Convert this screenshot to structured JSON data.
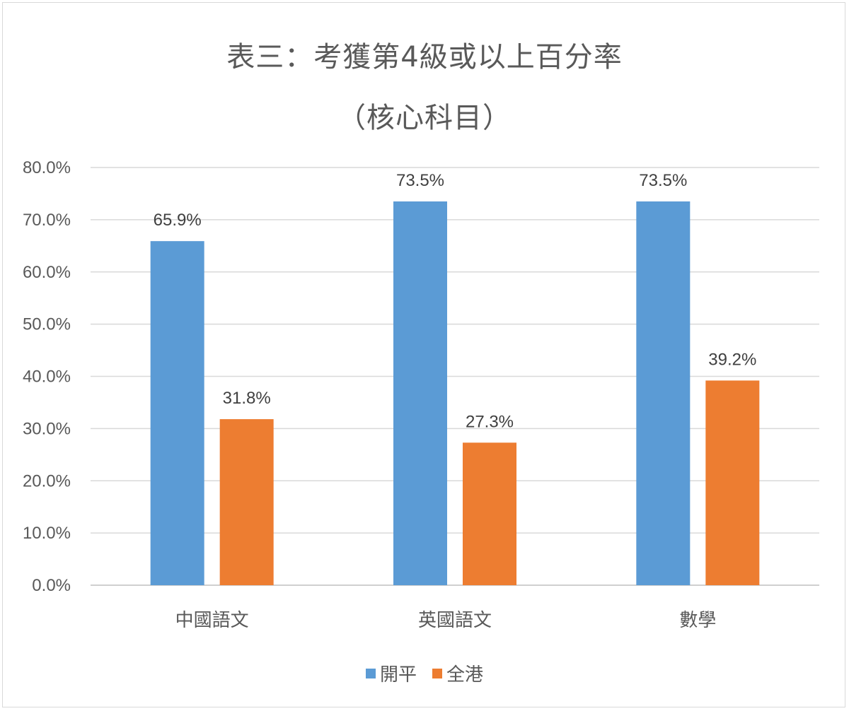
{
  "chart_data": {
    "type": "bar",
    "title": "表三：考獲第4級或以上百分率",
    "subtitle": "（核心科目）",
    "categories": [
      "中國語文",
      "英國語文",
      "數學"
    ],
    "series": [
      {
        "name": "開平",
        "color": "#5b9bd5",
        "values": [
          65.9,
          73.5,
          73.5
        ],
        "labels": [
          "65.9%",
          "73.5%",
          "73.5%"
        ]
      },
      {
        "name": "全港",
        "color": "#ed7d31",
        "values": [
          31.8,
          27.3,
          39.2
        ],
        "labels": [
          "31.8%",
          "27.3%",
          "39.2%"
        ]
      }
    ],
    "y_ticks": [
      "0.0%",
      "10.0%",
      "20.0%",
      "30.0%",
      "40.0%",
      "50.0%",
      "60.0%",
      "70.0%",
      "80.0%"
    ],
    "ylim": [
      0,
      80
    ],
    "grid": true,
    "legend_position": "bottom"
  }
}
